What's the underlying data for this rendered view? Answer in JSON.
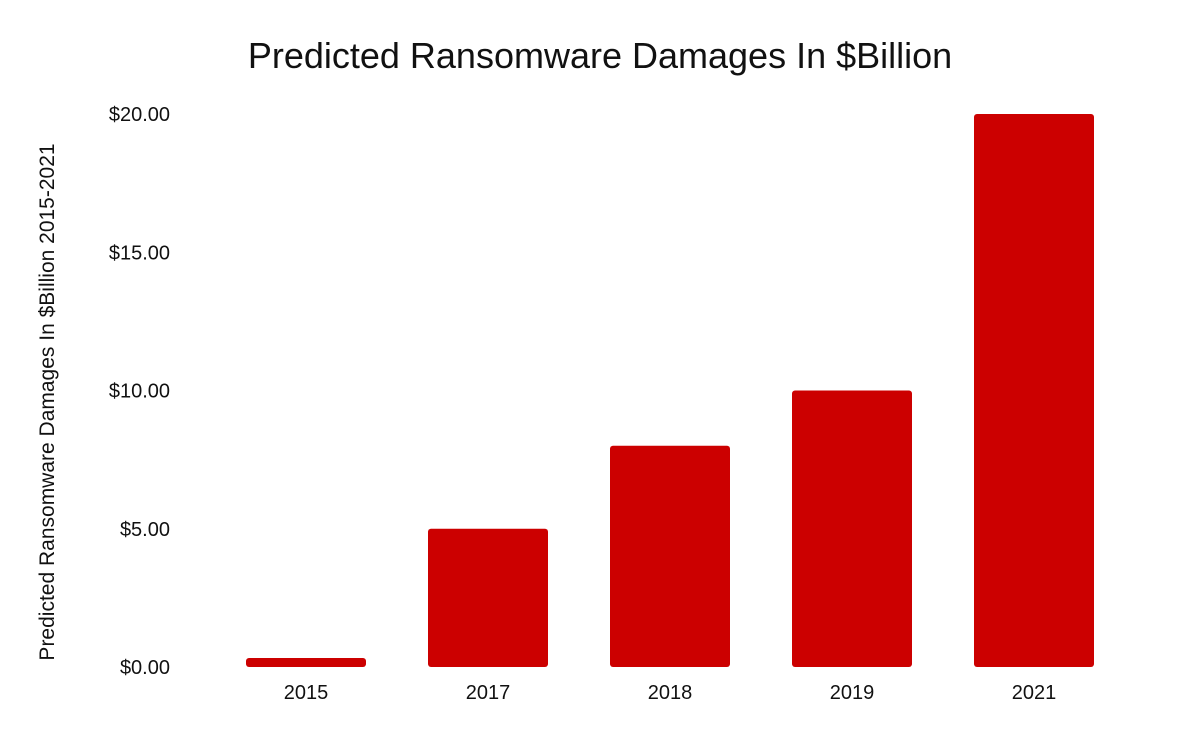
{
  "chart_data": {
    "type": "bar",
    "title": "Predicted Ransomware Damages In $Billion",
    "xlabel": "",
    "ylabel": "Predicted Ransomware Damages In $Billion 2015-2021",
    "categories": [
      "2015",
      "2017",
      "2018",
      "2019",
      "2021"
    ],
    "values": [
      0.325,
      5,
      8,
      10,
      20
    ],
    "ylim": [
      0,
      20
    ],
    "yticks": [
      0,
      5,
      10,
      15,
      20
    ],
    "ytick_labels": [
      "$0.00",
      "$5.00",
      "$10.00",
      "$15.00",
      "$20.00"
    ],
    "grid": false,
    "legend": "none",
    "bar_color": "#cc0000"
  }
}
